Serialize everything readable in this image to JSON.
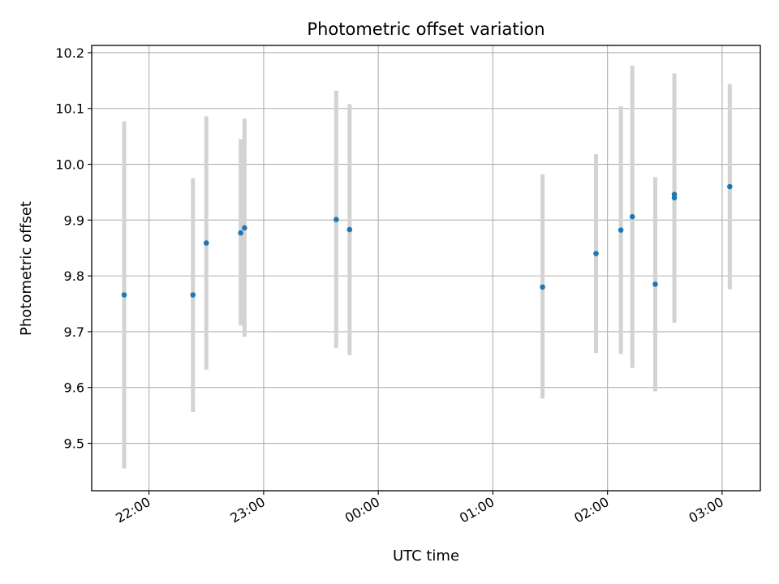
{
  "chart_data": {
    "type": "scatter",
    "title": "Photometric offset variation",
    "xlabel": "UTC time",
    "ylabel": "Photometric offset",
    "x_unit": "UTC time (HH:MM)",
    "xlim": [
      "21:30",
      "03:20"
    ],
    "ylim": [
      9.415,
      10.213
    ],
    "x_ticks": [
      "22:00",
      "23:00",
      "00:00",
      "01:00",
      "02:00",
      "03:00"
    ],
    "y_ticks": [
      "9.5",
      "9.6",
      "9.7",
      "9.8",
      "9.9",
      "10.0",
      "10.1",
      "10.2"
    ],
    "grid": true,
    "legend": "none",
    "colors": {
      "points": "#1f77b4",
      "error_bars": "#d3d3d3",
      "grid": "#b0b0b0"
    },
    "series": [
      {
        "points": [
          {
            "x": "21:47",
            "y": 9.766,
            "y_low": 9.455,
            "y_high": 10.077
          },
          {
            "x": "22:23",
            "y": 9.766,
            "y_low": 9.556,
            "y_high": 9.975
          },
          {
            "x": "22:30",
            "y": 9.859,
            "y_low": 9.632,
            "y_high": 10.086
          },
          {
            "x": "22:48",
            "y": 9.877,
            "y_low": 9.711,
            "y_high": 10.045
          },
          {
            "x": "22:50",
            "y": 9.886,
            "y_low": 9.691,
            "y_high": 10.082
          },
          {
            "x": "23:38",
            "y": 9.901,
            "y_low": 9.671,
            "y_high": 10.132
          },
          {
            "x": "23:45",
            "y": 9.883,
            "y_low": 9.658,
            "y_high": 10.108
          },
          {
            "x": "01:26",
            "y": 9.78,
            "y_low": 9.58,
            "y_high": 9.982
          },
          {
            "x": "01:54",
            "y": 9.84,
            "y_low": 9.662,
            "y_high": 10.018
          },
          {
            "x": "02:07",
            "y": 9.882,
            "y_low": 9.66,
            "y_high": 10.104
          },
          {
            "x": "02:13",
            "y": 9.906,
            "y_low": 9.635,
            "y_high": 10.177
          },
          {
            "x": "02:25",
            "y": 9.785,
            "y_low": 9.593,
            "y_high": 9.977
          },
          {
            "x": "02:35",
            "y": 9.94,
            "y_low": 9.716,
            "y_high": 10.163
          },
          {
            "x": "02:35",
            "y": 9.946,
            "y_low": 9.732,
            "y_high": 10.159
          },
          {
            "x": "03:04",
            "y": 9.96,
            "y_low": 9.776,
            "y_high": 10.144
          }
        ]
      }
    ]
  }
}
